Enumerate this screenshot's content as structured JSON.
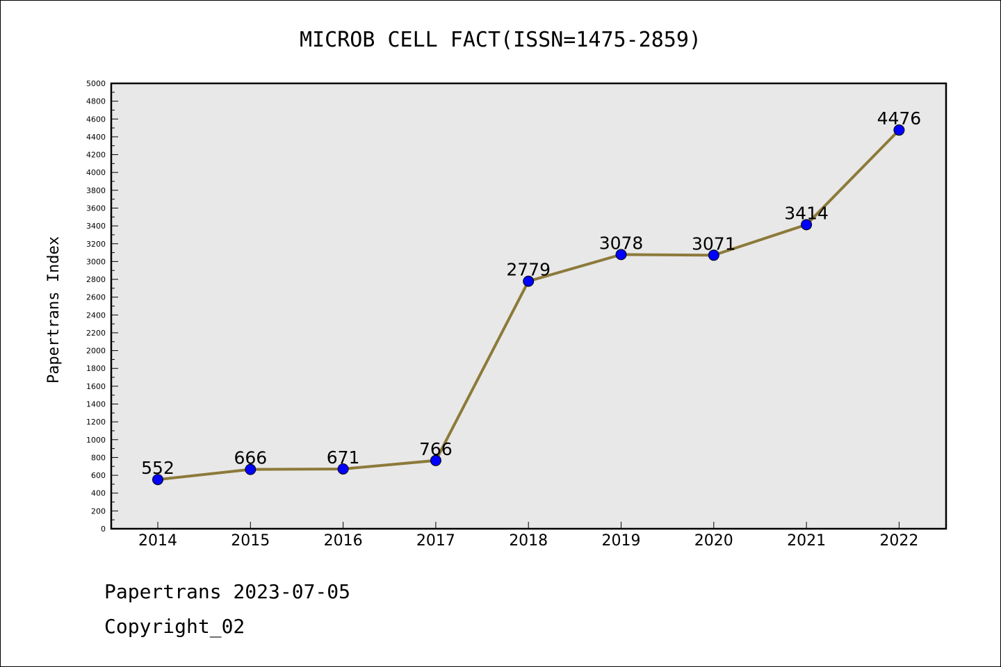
{
  "chart_data": {
    "type": "line",
    "title": "MICROB CELL FACT(ISSN=1475-2859)",
    "xlabel": "",
    "ylabel": "Papertrans Index",
    "categories": [
      "2014",
      "2015",
      "2016",
      "2017",
      "2018",
      "2019",
      "2020",
      "2021",
      "2022"
    ],
    "series": [
      {
        "values": [
          552,
          666,
          671,
          766,
          2779,
          3078,
          3071,
          3414,
          4476
        ]
      }
    ],
    "ylim": [
      0,
      5000
    ],
    "yticks": [
      0,
      200,
      400,
      600,
      800,
      1000,
      1200,
      1400,
      1600,
      1800,
      2000,
      2200,
      2400,
      2600,
      2800,
      3000,
      3200,
      3400,
      3600,
      3800,
      4000,
      4200,
      4400,
      4600,
      4800,
      5000
    ],
    "grid": false,
    "line_color": "#8c7a3a",
    "marker_color": "#0000ff",
    "plot_background": "#e8e8e8"
  },
  "footer": {
    "line1": "Papertrans 2023-07-05",
    "line2": "Copyright_02"
  }
}
